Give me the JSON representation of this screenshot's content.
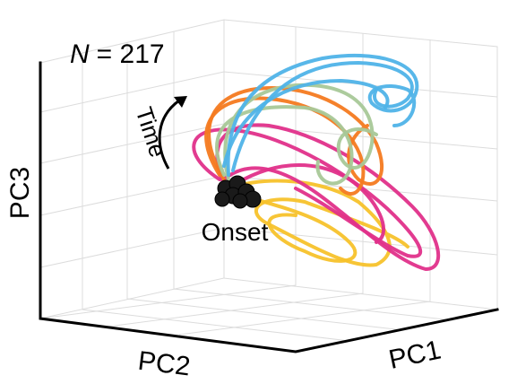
{
  "panel": {
    "annotation": {
      "symbol": "N",
      "rest": "= 217"
    },
    "arrow_label": "Time",
    "marker_label": "Onset",
    "axes": {
      "x": "PC1",
      "y": "PC2",
      "z": "PC3"
    }
  }
}
